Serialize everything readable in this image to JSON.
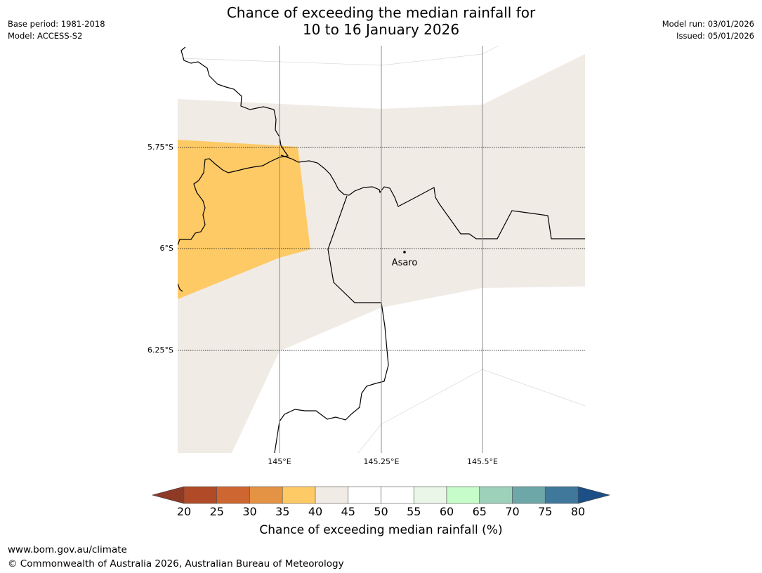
{
  "header": {
    "title_line1": "Chance of exceeding the median rainfall for",
    "title_line2": "10 to 16 January 2026",
    "base_period": "Base period: 1981-2018",
    "model": "Model: ACCESS-S2",
    "model_run": "Model run: 03/01/2026",
    "issued": "Issued: 05/01/2026"
  },
  "map": {
    "lat_labels": [
      "5.75°S",
      "6°S",
      "6.25°S"
    ],
    "lon_labels": [
      "145°E",
      "145.25°E",
      "145.5°E"
    ],
    "place_label": "Asaro"
  },
  "chart_data": {
    "type": "heatmap",
    "title": "Chance of exceeding the median rainfall for 10 to 16 January 2026",
    "lat_ticks": [
      -5.75,
      -6.0,
      -6.25
    ],
    "lon_ticks": [
      145.0,
      145.25,
      145.5
    ],
    "place": {
      "name": "Asaro",
      "lat": -6.01,
      "lon": 145.3
    },
    "regions": [
      {
        "range": "35-40",
        "color": "#FECA66",
        "area": "western part of map (approx. 144.75°E–145.07°E, 5.75°S–6.12°S)"
      },
      {
        "range": "40-45",
        "color": "#F0EBE5",
        "area": "most of remaining shaded map area"
      }
    ],
    "colorbar": {
      "label": "Chance of exceeding median rainfall (%)",
      "ticks": [
        20,
        25,
        30,
        35,
        40,
        45,
        50,
        55,
        60,
        65,
        70,
        75,
        80
      ],
      "under_color": "#8E3A26",
      "over_color": "#1C4F86",
      "colors": [
        "#B04A27",
        "#CE6631",
        "#E49345",
        "#FECA66",
        "#F0EBE5",
        "#FFFFFF",
        "#FFFFFF",
        "#EAF7E8",
        "#C6FCCA",
        "#9DD1BA",
        "#6EA7A7",
        "#3F789A"
      ]
    }
  },
  "footer": {
    "url": "www.bom.gov.au/climate",
    "copyright": "© Commonwealth of Australia 2026, Australian Bureau of Meteorology"
  }
}
